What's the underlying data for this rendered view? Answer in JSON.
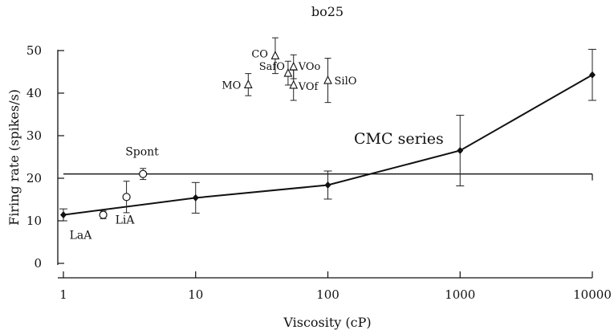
{
  "chart_data": {
    "type": "scatter",
    "title": "bo25",
    "xlabel": "Viscosity (cP)",
    "ylabel": "Firing rate (spikes/s)",
    "x_scale": "log",
    "xlim": [
      1,
      10000
    ],
    "ylim": [
      0,
      50
    ],
    "x_ticks": [
      {
        "value": 1,
        "label": "1"
      },
      {
        "value": 10,
        "label": "10"
      },
      {
        "value": 100,
        "label": "100"
      },
      {
        "value": 1000,
        "label": "1000"
      },
      {
        "value": 10000,
        "label": "10000"
      }
    ],
    "y_ticks": [
      {
        "value": 0,
        "label": "0"
      },
      {
        "value": 10,
        "label": "10"
      },
      {
        "value": 20,
        "label": "20"
      },
      {
        "value": 30,
        "label": "30"
      },
      {
        "value": 40,
        "label": "40"
      },
      {
        "value": 50,
        "label": "50"
      }
    ],
    "grid": false,
    "legend": "none",
    "reference_line": {
      "y": 21,
      "x_range": [
        1,
        10000
      ]
    },
    "cmc_series": {
      "label": "CMC series",
      "marker": "filled-diamond",
      "points": [
        {
          "x": 1,
          "y": 11.4,
          "err": 1.4
        },
        {
          "x": 10,
          "y": 15.4,
          "err": 3.6
        },
        {
          "x": 100,
          "y": 18.4,
          "err": 3.3
        },
        {
          "x": 1000,
          "y": 26.5,
          "err": 8.3
        },
        {
          "x": 10000,
          "y": 44.3,
          "err": 6.0
        }
      ]
    },
    "circle_points": [
      {
        "name": "LaA",
        "x": 2,
        "y": 11.4,
        "err": 0.9
      },
      {
        "name": "LiA",
        "x": 3,
        "y": 15.6,
        "err": 3.7
      },
      {
        "name": "Spont",
        "x": 4,
        "y": 21.0,
        "err": 1.3
      }
    ],
    "triangle_points": [
      {
        "name": "MO",
        "x": 25,
        "y": 42.0,
        "err": 2.6
      },
      {
        "name": "CO",
        "x": 40,
        "y": 48.8,
        "err": 4.2
      },
      {
        "name": "SafO",
        "x": 50,
        "y": 44.7,
        "err": 2.8
      },
      {
        "name": "VOo",
        "x": 55,
        "y": 46.2,
        "err": 2.8
      },
      {
        "name": "VOf",
        "x": 55,
        "y": 41.9,
        "err": 3.6
      },
      {
        "name": "SilO",
        "x": 100,
        "y": 43.0,
        "err": 5.2
      }
    ]
  }
}
